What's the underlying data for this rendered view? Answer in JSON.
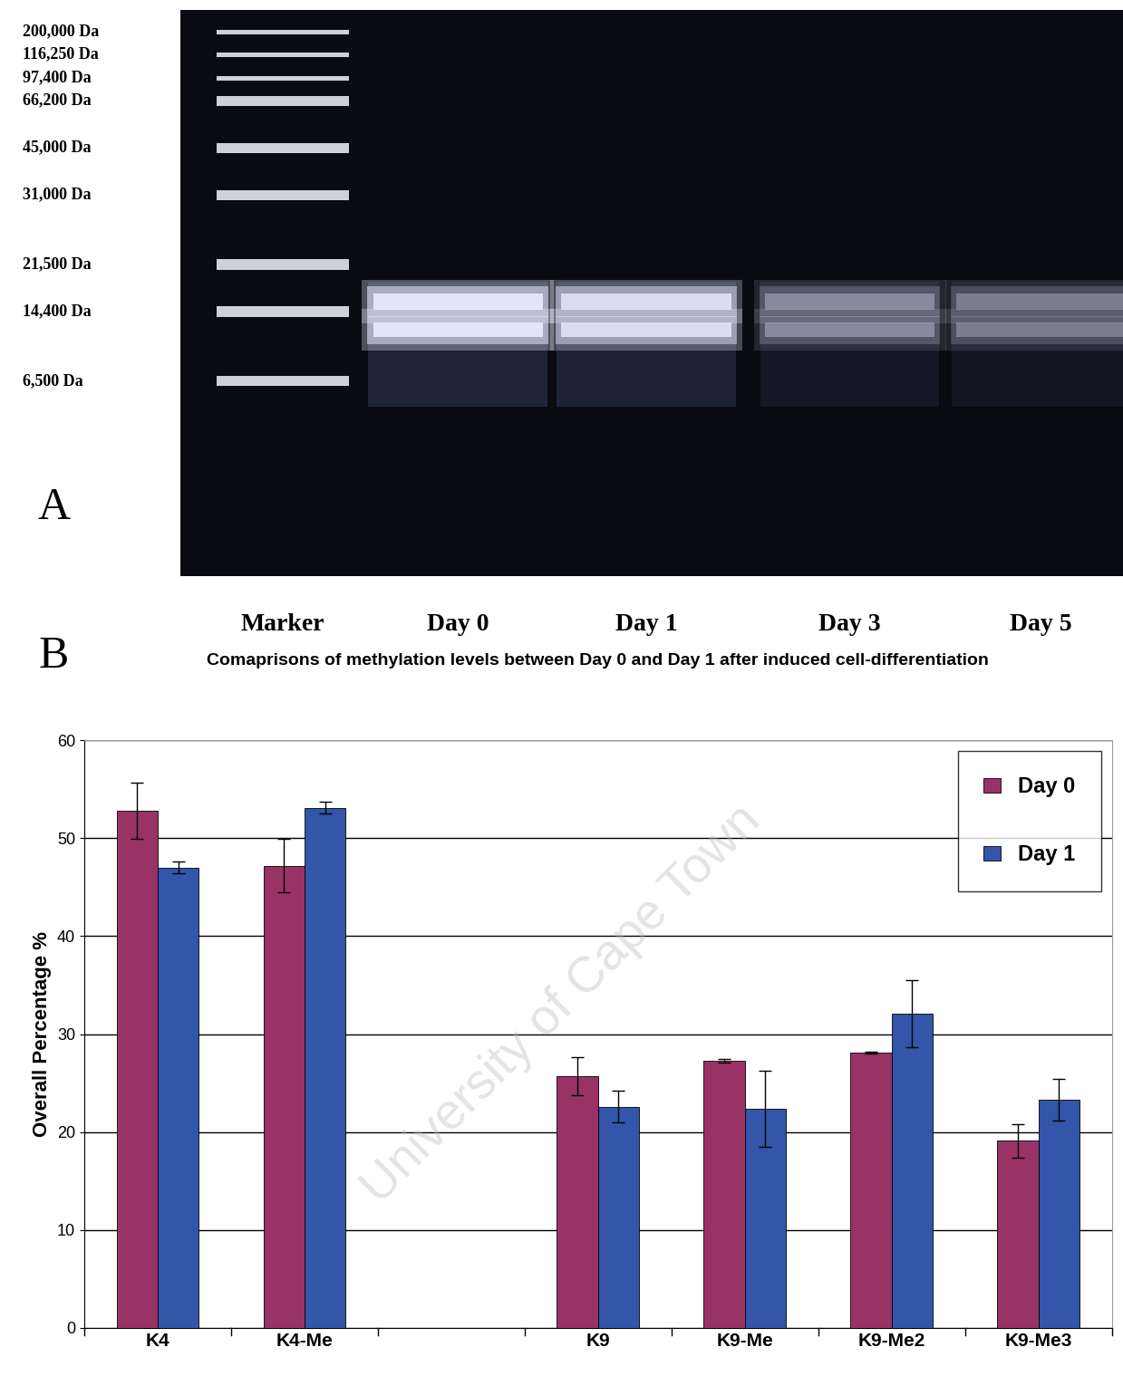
{
  "gel": {
    "panel_label": "A",
    "marker_labels": [
      "200,000 Da",
      "116,250 Da",
      "97,400 Da",
      "66,200 Da",
      "45,000 Da",
      "31,000 Da",
      "21,500 Da",
      "14,400 Da",
      "6,500 Da"
    ],
    "lanes": [
      "Marker",
      "Day 0",
      "Day 1",
      "Day 3",
      "Day 5"
    ]
  },
  "watermark": "University of Cape Town",
  "chart_data": {
    "panel_label": "B",
    "type": "bar",
    "title": "Comaprisons of methylation levels between Day 0 and Day 1 after induced cell-differentiation",
    "y_label": "Overall Percentage %",
    "categories": [
      "K4",
      "K4-Me",
      null,
      "K9",
      "K9-Me",
      "K9-Me2",
      "K9-Me3"
    ],
    "series": [
      {
        "name": "Day 0",
        "color": "#993366",
        "values": [
          52.8,
          47.2,
          null,
          25.7,
          27.3,
          28.1,
          19.1
        ],
        "errors": [
          2.9,
          2.7,
          null,
          1.9,
          0.2,
          0.1,
          1.7
        ]
      },
      {
        "name": "Day 1",
        "color": "#3355aa",
        "values": [
          47.0,
          53.1,
          null,
          22.6,
          22.4,
          32.1,
          23.3
        ],
        "errors": [
          0.6,
          0.6,
          null,
          1.6,
          3.9,
          3.4,
          2.1
        ]
      }
    ],
    "ylim": [
      0,
      60
    ],
    "yticks": [
      0,
      10,
      20,
      30,
      40,
      50,
      60
    ],
    "grid": true,
    "legend": "upper right"
  }
}
